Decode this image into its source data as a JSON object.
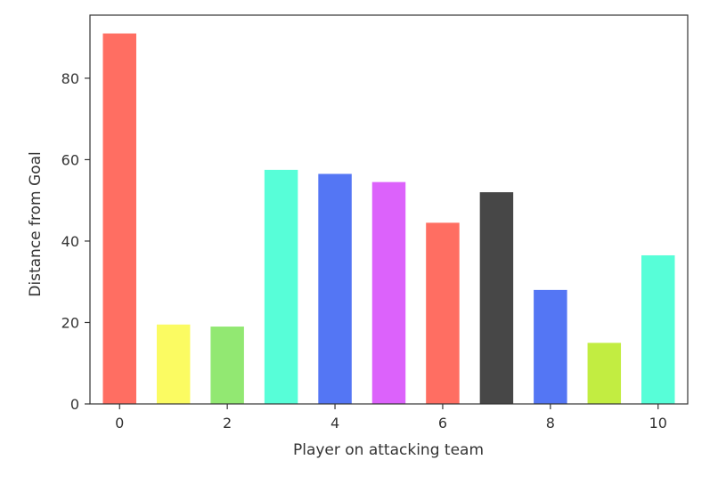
{
  "chart_data": {
    "type": "bar",
    "title": "",
    "xlabel": "Player on attacking team",
    "ylabel": "Distance from Goal",
    "categories": [
      0,
      1,
      2,
      3,
      4,
      5,
      6,
      7,
      8,
      9,
      10
    ],
    "values": [
      91,
      19.5,
      19,
      57.5,
      56.5,
      54.5,
      44.5,
      52,
      28,
      15,
      36.5
    ],
    "bar_colors": [
      "#ff6e62",
      "#fbfb62",
      "#92e872",
      "#57fed8",
      "#5476f4",
      "#dc62fb",
      "#ff6e62",
      "#474747",
      "#5476f4",
      "#c2ed41",
      "#57fed8"
    ],
    "xlim": [
      -0.55,
      10.55
    ],
    "ylim": [
      0,
      95.5
    ],
    "xticks": [
      0,
      2,
      4,
      6,
      8,
      10
    ],
    "yticks": [
      0,
      20,
      40,
      60,
      80
    ],
    "grid": false,
    "legend": "none"
  }
}
